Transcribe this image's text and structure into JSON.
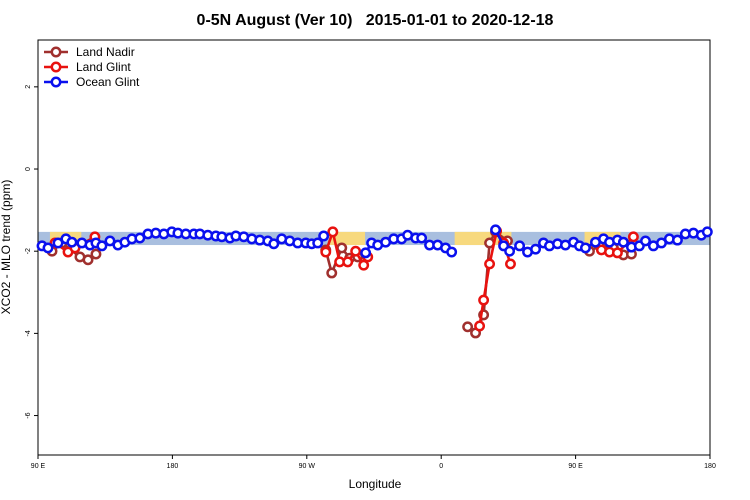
{
  "chart_data": {
    "type": "line",
    "title": "0-5N August (Ver 10)   2015-01-01 to 2020-12-18",
    "xlabel": "Longitude",
    "ylabel": "XCO2 - MLO trend (ppm)",
    "xlim": [
      90,
      540
    ],
    "ylim": [
      -6.96,
      3.14
    ],
    "xticks": [
      {
        "value": 90,
        "label": "90 E"
      },
      180,
      {
        "value": 270,
        "label": "90 W"
      },
      {
        "value": 360,
        "label": "0"
      },
      {
        "value": 450,
        "label": "90 E"
      },
      {
        "value": 540,
        "label": "180"
      }
    ],
    "yticks": [
      -6,
      -4,
      -2,
      0,
      2
    ],
    "legend": "top-left",
    "bands": [
      {
        "x": [
          90,
          540
        ],
        "y": [
          -1.53,
          -1.85
        ],
        "color": "#a9bfdf"
      },
      {
        "x": [
          98,
          119
        ],
        "y": [
          -1.53,
          -1.85
        ],
        "color": "#f7d97e"
      },
      {
        "x": [
          285,
          309
        ],
        "y": [
          -1.53,
          -1.85
        ],
        "color": "#f7d97e"
      },
      {
        "x": [
          369,
          407
        ],
        "y": [
          -1.53,
          -1.85
        ],
        "color": "#f7d97e"
      },
      {
        "x": [
          456,
          480
        ],
        "y": [
          -1.53,
          -1.85
        ],
        "color": "#f7d97e"
      }
    ],
    "series": [
      {
        "name": "Land Nadir",
        "color": "#a0302e",
        "x": [
          99.4,
          106.1,
          118.1,
          123.5,
          128.8,
          200,
          282.7,
          286.7,
          293.4,
          298.7,
          304.1,
          350,
          377.7,
          383.0,
          388.4,
          392.4,
          396.4,
          404.4,
          440,
          459.3,
          466.0,
          475.3,
          482.0,
          487.4
        ],
        "values": [
          -2.0,
          -1.8,
          -2.14,
          -2.21,
          -2.07,
          null,
          -1.97,
          -2.53,
          -1.92,
          -2.17,
          -2.14,
          null,
          -3.84,
          -3.99,
          -3.55,
          -1.8,
          -1.53,
          -1.75,
          null,
          -2.0,
          -1.87,
          -1.92,
          -2.09,
          -2.07
        ]
      },
      {
        "name": "Land Glint",
        "color": "#e8120f",
        "x": [
          101.4,
          110.1,
          114.8,
          128.1,
          200,
          282.7,
          287.4,
          292.0,
          297.4,
          302.7,
          308.1,
          310.8,
          350,
          385.7,
          388.4,
          392.4,
          397.1,
          401.8,
          406.4,
          440,
          467.3,
          472.7,
          478.0,
          488.7
        ],
        "values": [
          -1.8,
          -2.02,
          -1.92,
          -1.65,
          null,
          -2.02,
          -1.53,
          -2.26,
          -2.26,
          -2.0,
          -2.34,
          -2.14,
          null,
          -3.82,
          -3.19,
          -2.31,
          -1.51,
          -1.8,
          -2.31,
          null,
          -1.97,
          -2.02,
          -2.04,
          -1.65
        ]
      },
      {
        "name": "Ocean Glint",
        "color": "#0a10ee",
        "x": [
          92.7,
          96.7,
          103.4,
          108.7,
          112.7,
          119.4,
          124.8,
          128.8,
          132.8,
          138.2,
          143.5,
          148.2,
          152.9,
          158.2,
          163.6,
          168.9,
          174.3,
          179.6,
          183.7,
          189.0,
          194.4,
          198.4,
          203.7,
          209.1,
          213.1,
          218.5,
          222.5,
          227.8,
          233.2,
          238.5,
          243.9,
          247.9,
          253.2,
          258.6,
          263.9,
          269.3,
          273.3,
          277.3,
          281.3,
          295,
          309.4,
          313.4,
          317.5,
          322.8,
          328.2,
          333.5,
          337.5,
          342.9,
          346.9,
          352.2,
          357.6,
          362.9,
          367.0,
          380,
          396.4,
          401.8,
          405.8,
          412.5,
          417.8,
          423.2,
          428.5,
          432.5,
          437.9,
          443.2,
          448.6,
          452.6,
          456.6,
          463.3,
          468.7,
          472.7,
          478.0,
          482.0,
          487.4,
          492.7,
          496.8,
          502.1,
          507.5,
          512.8,
          518.2,
          523.5,
          528.9,
          534.2,
          538.2
        ],
        "values": [
          -1.87,
          -1.92,
          -1.8,
          -1.7,
          -1.78,
          -1.8,
          -1.85,
          -1.8,
          -1.87,
          -1.75,
          -1.85,
          -1.78,
          -1.7,
          -1.68,
          -1.58,
          -1.56,
          -1.58,
          -1.53,
          -1.56,
          -1.58,
          -1.58,
          -1.58,
          -1.61,
          -1.63,
          -1.65,
          -1.68,
          -1.63,
          -1.65,
          -1.7,
          -1.73,
          -1.75,
          -1.82,
          -1.7,
          -1.75,
          -1.8,
          -1.8,
          -1.82,
          -1.8,
          -1.63,
          null,
          -2.04,
          -1.8,
          -1.85,
          -1.78,
          -1.7,
          -1.7,
          -1.61,
          -1.68,
          -1.68,
          -1.85,
          -1.85,
          -1.92,
          -2.02,
          null,
          -1.48,
          -1.87,
          -2.0,
          -1.87,
          -2.02,
          -1.95,
          -1.8,
          -1.87,
          -1.82,
          -1.85,
          -1.78,
          -1.87,
          -1.92,
          -1.78,
          -1.7,
          -1.78,
          -1.73,
          -1.78,
          -1.9,
          -1.87,
          -1.75,
          -1.87,
          -1.8,
          -1.7,
          -1.73,
          -1.58,
          -1.56,
          -1.61,
          -1.53
        ]
      }
    ]
  }
}
